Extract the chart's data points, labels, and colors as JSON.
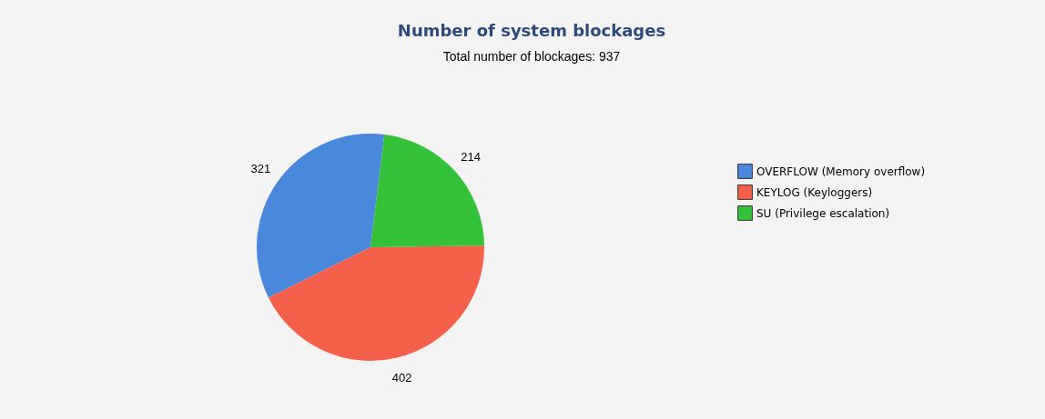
{
  "chart_data": {
    "type": "pie",
    "title": "Number of system blockages",
    "subtitle": "Total number of blockages: 937",
    "categories": [
      "OVERFLOW (Memory overflow)",
      "KEYLOG (Keyloggers)",
      "SU (Privilege escalation)"
    ],
    "values": [
      321,
      402,
      214
    ],
    "colors": [
      "#4a88de",
      "#f5604a",
      "#33c23a"
    ],
    "data_labels": true,
    "legend": "right"
  }
}
